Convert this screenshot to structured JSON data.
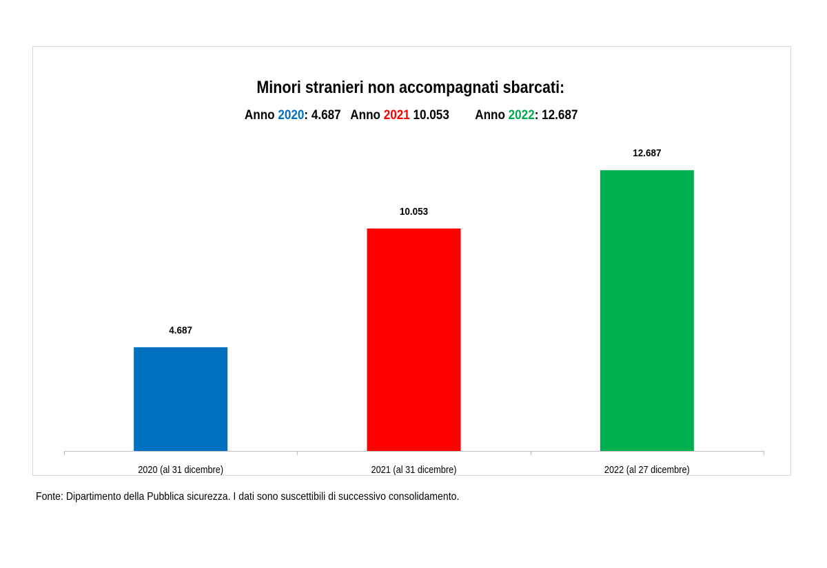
{
  "chart_data": {
    "type": "bar",
    "title": "Minori stranieri non accompagnati sbarcati:",
    "subtitle": {
      "a_label": "Anno ",
      "a_year": "2020",
      "a_value": ": 4.687",
      "b_label": "Anno ",
      "b_year": "2021",
      "b_value": " 10.053",
      "c_label": "Anno ",
      "c_year": "2022",
      "c_value": ": 12.687"
    },
    "categories": [
      "2020 (al 31 dicembre)",
      "2021 (al 31 dicembre)",
      "2022 (al 27 dicembre)"
    ],
    "values": [
      4687,
      10053,
      12687
    ],
    "value_labels": [
      "4.687",
      "10.053",
      "12.687"
    ],
    "colors": [
      "#0070c0",
      "#ff0000",
      "#00b050"
    ],
    "ylim": [
      0,
      14000
    ],
    "grid": false,
    "legend": "none"
  },
  "footer": {
    "source": "Fonte: Dipartimento della Pubblica sicurezza. I dati sono suscettibili di successivo consolidamento."
  }
}
